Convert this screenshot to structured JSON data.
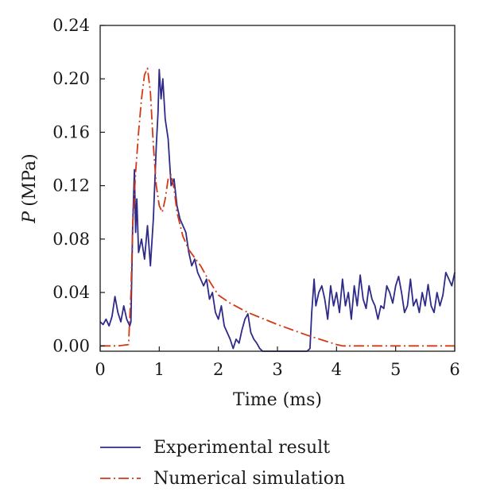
{
  "chart_data": {
    "type": "line",
    "xlabel": "Time (ms)",
    "ylabel_symbol": "P",
    "ylabel_unit": "(MPa)",
    "xlim": [
      0,
      6
    ],
    "ylim": [
      -0.004,
      0.24
    ],
    "x_ticks": [
      0,
      1,
      2,
      3,
      4,
      5,
      6
    ],
    "x_tick_labels": [
      "0",
      "1",
      "2",
      "3",
      "4",
      "5",
      "6"
    ],
    "y_ticks": [
      0.0,
      0.04,
      0.08,
      0.12,
      0.16,
      0.2,
      0.24
    ],
    "y_tick_labels": [
      "0.00",
      "0.04",
      "0.08",
      "0.12",
      "0.16",
      "0.20",
      "0.24"
    ],
    "grid": false,
    "legend_position": "bottom",
    "series": [
      {
        "name": "Experimental result",
        "color": "#2e2a8a",
        "style": "solid",
        "x": [
          0.0,
          0.05,
          0.1,
          0.15,
          0.2,
          0.25,
          0.3,
          0.35,
          0.4,
          0.45,
          0.5,
          0.52,
          0.55,
          0.58,
          0.6,
          0.62,
          0.65,
          0.7,
          0.75,
          0.8,
          0.85,
          0.9,
          0.95,
          0.98,
          1.0,
          1.03,
          1.06,
          1.1,
          1.15,
          1.2,
          1.25,
          1.3,
          1.35,
          1.4,
          1.45,
          1.5,
          1.55,
          1.6,
          1.65,
          1.7,
          1.75,
          1.8,
          1.85,
          1.9,
          1.95,
          2.0,
          2.05,
          2.1,
          2.15,
          2.2,
          2.25,
          2.3,
          2.35,
          2.4,
          2.45,
          2.5,
          2.55,
          2.6,
          2.65,
          2.7,
          2.75,
          3.0,
          3.2,
          3.5,
          3.55,
          3.58,
          3.62,
          3.65,
          3.7,
          3.75,
          3.8,
          3.85,
          3.9,
          3.95,
          4.0,
          4.05,
          4.1,
          4.15,
          4.2,
          4.25,
          4.3,
          4.35,
          4.4,
          4.45,
          4.5,
          4.55,
          4.6,
          4.65,
          4.7,
          4.75,
          4.8,
          4.85,
          4.9,
          4.95,
          5.0,
          5.05,
          5.1,
          5.15,
          5.2,
          5.25,
          5.3,
          5.35,
          5.4,
          5.45,
          5.5,
          5.55,
          5.6,
          5.65,
          5.7,
          5.75,
          5.8,
          5.85,
          5.9,
          5.95,
          6.0
        ],
        "y": [
          0.018,
          0.016,
          0.02,
          0.015,
          0.022,
          0.037,
          0.025,
          0.018,
          0.03,
          0.02,
          0.015,
          0.018,
          0.09,
          0.132,
          0.085,
          0.11,
          0.07,
          0.08,
          0.065,
          0.09,
          0.06,
          0.095,
          0.15,
          0.175,
          0.207,
          0.185,
          0.2,
          0.17,
          0.155,
          0.12,
          0.125,
          0.105,
          0.095,
          0.09,
          0.085,
          0.07,
          0.06,
          0.065,
          0.055,
          0.05,
          0.045,
          0.05,
          0.035,
          0.04,
          0.025,
          0.02,
          0.03,
          0.015,
          0.01,
          0.005,
          -0.002,
          0.005,
          0.002,
          0.012,
          0.02,
          0.024,
          0.01,
          0.005,
          0.002,
          -0.002,
          -0.004,
          -0.004,
          -0.004,
          -0.004,
          -0.002,
          0.025,
          0.05,
          0.03,
          0.04,
          0.045,
          0.035,
          0.02,
          0.045,
          0.03,
          0.04,
          0.025,
          0.05,
          0.03,
          0.04,
          0.02,
          0.045,
          0.03,
          0.053,
          0.035,
          0.028,
          0.045,
          0.035,
          0.03,
          0.02,
          0.03,
          0.028,
          0.045,
          0.04,
          0.032,
          0.045,
          0.052,
          0.04,
          0.025,
          0.03,
          0.05,
          0.03,
          0.035,
          0.025,
          0.04,
          0.03,
          0.046,
          0.03,
          0.025,
          0.04,
          0.03,
          0.038,
          0.055,
          0.05,
          0.045,
          0.055
        ]
      },
      {
        "name": "Numerical simulation",
        "color": "#d23a16",
        "style": "dashdot",
        "x": [
          0.0,
          0.3,
          0.48,
          0.52,
          0.55,
          0.6,
          0.65,
          0.7,
          0.75,
          0.8,
          0.85,
          0.9,
          0.95,
          1.0,
          1.05,
          1.1,
          1.15,
          1.2,
          1.25,
          1.3,
          1.4,
          1.5,
          1.6,
          1.7,
          1.8,
          1.9,
          2.0,
          2.2,
          2.5,
          3.0,
          3.5,
          4.0,
          4.1,
          5.0,
          6.0
        ],
        "y": [
          0.0,
          0.0,
          0.001,
          0.04,
          0.09,
          0.13,
          0.16,
          0.185,
          0.203,
          0.208,
          0.19,
          0.15,
          0.12,
          0.105,
          0.1,
          0.11,
          0.125,
          0.128,
          0.118,
          0.1,
          0.082,
          0.072,
          0.066,
          0.06,
          0.052,
          0.045,
          0.038,
          0.032,
          0.025,
          0.016,
          0.008,
          0.001,
          0.0,
          0.0,
          0.0
        ]
      }
    ]
  }
}
